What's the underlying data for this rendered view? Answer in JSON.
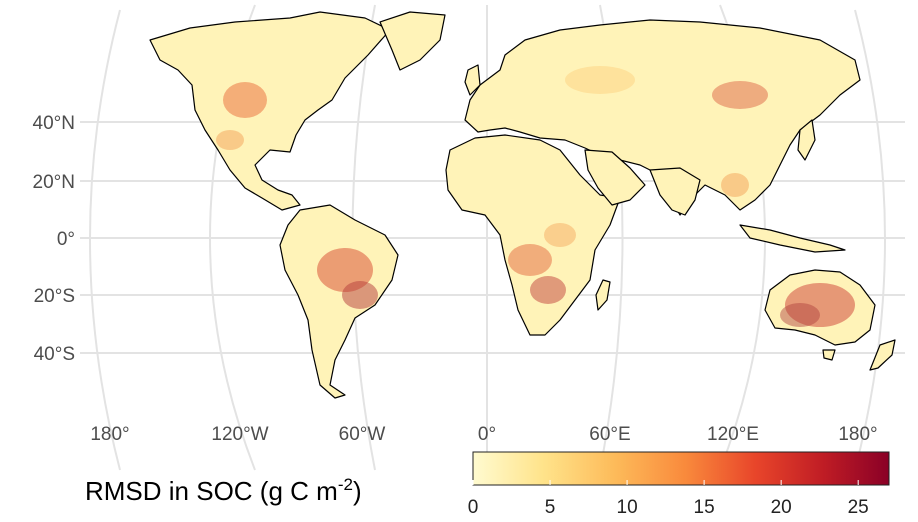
{
  "map": {
    "lat_labels": [
      "40°N",
      "20°N",
      "0°",
      "20°S",
      "40°S"
    ],
    "lon_labels": [
      "180°",
      "120°W",
      "60°W",
      "0°",
      "60°E",
      "120°E",
      "180°"
    ]
  },
  "legend": {
    "title_prefix": "RMSD in SOC (g C m",
    "title_exp": "-2",
    "title_suffix": ")",
    "ticks": [
      "0",
      "5",
      "10",
      "15",
      "20",
      "25"
    ],
    "range": [
      0,
      27
    ],
    "colors": [
      "#fffbd0",
      "#ffe38a",
      "#fdbb5a",
      "#f98a3c",
      "#e8452a",
      "#c01d25",
      "#8a0026"
    ]
  }
}
